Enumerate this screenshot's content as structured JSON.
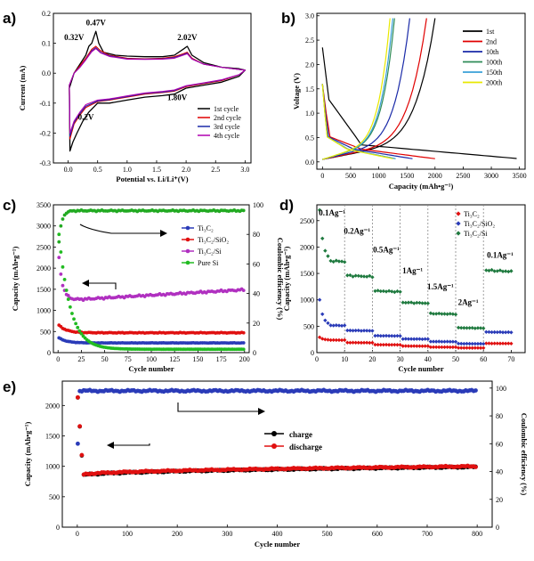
{
  "chart_data": [
    {
      "id": "a",
      "panel_label": "a)",
      "type": "line",
      "xlabel": "Potential vs. Li/Li⁺(V)",
      "ylabel": "Current (mA)",
      "xlim": [
        -0.25,
        3.1
      ],
      "ylim": [
        -0.3,
        0.2
      ],
      "xticks": [
        0.0,
        0.5,
        1.0,
        1.5,
        2.0,
        2.5,
        3.0
      ],
      "yticks": [
        -0.3,
        -0.2,
        -0.1,
        0.0,
        0.1,
        0.2
      ],
      "annotations": [
        {
          "text": "0.47V",
          "x": 0.47,
          "y": 0.16
        },
        {
          "text": "0.32V",
          "x": 0.1,
          "y": 0.11
        },
        {
          "text": "2.02V",
          "x": 2.02,
          "y": 0.11
        },
        {
          "text": "1.80V",
          "x": 1.85,
          "y": -0.09
        },
        {
          "text": "0.2V",
          "x": 0.3,
          "y": -0.155
        }
      ],
      "legend_position": "bottom-right",
      "series": [
        {
          "name": "1st cycle",
          "color": "#000000",
          "upper": [
            [
              0.02,
              -0.05
            ],
            [
              0.1,
              0.0
            ],
            [
              0.2,
              0.03
            ],
            [
              0.3,
              0.06
            ],
            [
              0.35,
              0.09
            ],
            [
              0.4,
              0.1
            ],
            [
              0.47,
              0.14
            ],
            [
              0.52,
              0.1
            ],
            [
              0.6,
              0.07
            ],
            [
              0.8,
              0.06
            ],
            [
              1.0,
              0.057
            ],
            [
              1.3,
              0.055
            ],
            [
              1.6,
              0.055
            ],
            [
              1.8,
              0.06
            ],
            [
              1.95,
              0.08
            ],
            [
              2.02,
              0.09
            ],
            [
              2.1,
              0.06
            ],
            [
              2.3,
              0.035
            ],
            [
              2.6,
              0.02
            ],
            [
              2.9,
              0.015
            ],
            [
              3.0,
              0.01
            ]
          ],
          "lower": [
            [
              3.0,
              0.01
            ],
            [
              2.9,
              -0.01
            ],
            [
              2.6,
              -0.03
            ],
            [
              2.3,
              -0.04
            ],
            [
              2.0,
              -0.05
            ],
            [
              1.8,
              -0.07
            ],
            [
              1.6,
              -0.075
            ],
            [
              1.3,
              -0.08
            ],
            [
              1.0,
              -0.09
            ],
            [
              0.7,
              -0.1
            ],
            [
              0.5,
              -0.1
            ],
            [
              0.35,
              -0.13
            ],
            [
              0.25,
              -0.16
            ],
            [
              0.15,
              -0.2
            ],
            [
              0.08,
              -0.23
            ],
            [
              0.03,
              -0.26
            ],
            [
              0.02,
              -0.05
            ]
          ]
        },
        {
          "name": "2nd cycle",
          "color": "#e00000",
          "upper": [
            [
              0.02,
              -0.04
            ],
            [
              0.1,
              0.0
            ],
            [
              0.2,
              0.025
            ],
            [
              0.3,
              0.05
            ],
            [
              0.4,
              0.08
            ],
            [
              0.47,
              0.09
            ],
            [
              0.55,
              0.075
            ],
            [
              0.7,
              0.06
            ],
            [
              1.0,
              0.05
            ],
            [
              1.3,
              0.048
            ],
            [
              1.6,
              0.05
            ],
            [
              1.8,
              0.055
            ],
            [
              1.95,
              0.065
            ],
            [
              2.02,
              0.07
            ],
            [
              2.1,
              0.05
            ],
            [
              2.3,
              0.03
            ],
            [
              2.6,
              0.02
            ],
            [
              3.0,
              0.01
            ]
          ],
          "lower": [
            [
              3.0,
              0.01
            ],
            [
              2.9,
              -0.005
            ],
            [
              2.6,
              -0.025
            ],
            [
              2.3,
              -0.035
            ],
            [
              2.0,
              -0.045
            ],
            [
              1.8,
              -0.06
            ],
            [
              1.6,
              -0.065
            ],
            [
              1.3,
              -0.07
            ],
            [
              1.0,
              -0.08
            ],
            [
              0.7,
              -0.09
            ],
            [
              0.5,
              -0.095
            ],
            [
              0.3,
              -0.115
            ],
            [
              0.2,
              -0.14
            ],
            [
              0.1,
              -0.17
            ],
            [
              0.03,
              -0.22
            ],
            [
              0.02,
              -0.04
            ]
          ]
        },
        {
          "name": "3rd cycle",
          "color": "#1a2aa8",
          "upper": [
            [
              0.02,
              -0.04
            ],
            [
              0.1,
              0.0
            ],
            [
              0.2,
              0.02
            ],
            [
              0.3,
              0.045
            ],
            [
              0.4,
              0.075
            ],
            [
              0.47,
              0.085
            ],
            [
              0.55,
              0.07
            ],
            [
              0.7,
              0.058
            ],
            [
              1.0,
              0.048
            ],
            [
              1.3,
              0.047
            ],
            [
              1.6,
              0.048
            ],
            [
              1.8,
              0.052
            ],
            [
              1.95,
              0.062
            ],
            [
              2.02,
              0.067
            ],
            [
              2.1,
              0.048
            ],
            [
              2.3,
              0.03
            ],
            [
              2.6,
              0.02
            ],
            [
              3.0,
              0.01
            ]
          ],
          "lower": [
            [
              3.0,
              0.01
            ],
            [
              2.9,
              -0.005
            ],
            [
              2.6,
              -0.023
            ],
            [
              2.3,
              -0.033
            ],
            [
              2.0,
              -0.043
            ],
            [
              1.8,
              -0.058
            ],
            [
              1.6,
              -0.063
            ],
            [
              1.3,
              -0.068
            ],
            [
              1.0,
              -0.078
            ],
            [
              0.7,
              -0.088
            ],
            [
              0.5,
              -0.093
            ],
            [
              0.3,
              -0.11
            ],
            [
              0.2,
              -0.135
            ],
            [
              0.1,
              -0.165
            ],
            [
              0.03,
              -0.21
            ],
            [
              0.02,
              -0.04
            ]
          ]
        },
        {
          "name": "4th cycle",
          "color": "#b000b0",
          "upper": [
            [
              0.02,
              -0.04
            ],
            [
              0.1,
              0.0
            ],
            [
              0.2,
              0.02
            ],
            [
              0.3,
              0.045
            ],
            [
              0.4,
              0.072
            ],
            [
              0.47,
              0.082
            ],
            [
              0.55,
              0.068
            ],
            [
              0.7,
              0.056
            ],
            [
              1.0,
              0.047
            ],
            [
              1.3,
              0.046
            ],
            [
              1.6,
              0.047
            ],
            [
              1.8,
              0.05
            ],
            [
              1.95,
              0.06
            ],
            [
              2.02,
              0.065
            ],
            [
              2.1,
              0.047
            ],
            [
              2.3,
              0.03
            ],
            [
              2.6,
              0.02
            ],
            [
              3.0,
              0.01
            ]
          ],
          "lower": [
            [
              3.0,
              0.01
            ],
            [
              2.9,
              -0.005
            ],
            [
              2.6,
              -0.022
            ],
            [
              2.3,
              -0.032
            ],
            [
              2.0,
              -0.042
            ],
            [
              1.8,
              -0.056
            ],
            [
              1.6,
              -0.061
            ],
            [
              1.3,
              -0.066
            ],
            [
              1.0,
              -0.076
            ],
            [
              0.7,
              -0.086
            ],
            [
              0.5,
              -0.09
            ],
            [
              0.3,
              -0.105
            ],
            [
              0.2,
              -0.13
            ],
            [
              0.1,
              -0.16
            ],
            [
              0.03,
              -0.2
            ],
            [
              0.02,
              -0.04
            ]
          ]
        }
      ]
    },
    {
      "id": "b",
      "panel_label": "b)",
      "type": "line",
      "xlabel": "Capacity (mAh•g⁻¹)",
      "ylabel": "Voltage (V)",
      "xlim": [
        -100,
        3600
      ],
      "ylim": [
        -0.15,
        3.05
      ],
      "xticks": [
        0,
        500,
        1000,
        1500,
        2000,
        2500,
        3000,
        3500
      ],
      "yticks": [
        0.0,
        0.5,
        1.0,
        1.5,
        2.0,
        2.5,
        3.0
      ],
      "legend_position": "top-right",
      "series": [
        {
          "name": "1st",
          "color": "#000000",
          "discharge_end": 3450,
          "charge_end": 2000
        },
        {
          "name": "2nd",
          "color": "#e00000",
          "discharge_end": 2000,
          "charge_end": 1850
        },
        {
          "name": "10th",
          "color": "#1a2aa8",
          "discharge_end": 1600,
          "charge_end": 1550
        },
        {
          "name": "100th",
          "color": "#2e8b57",
          "discharge_end": 1300,
          "charge_end": 1280
        },
        {
          "name": "150th",
          "color": "#3aa0d8",
          "discharge_end": 1300,
          "charge_end": 1250
        },
        {
          "name": "200th",
          "color": "#e8e800",
          "discharge_end": 1250,
          "charge_end": 1200
        }
      ]
    },
    {
      "id": "c",
      "panel_label": "c)",
      "type": "scatter",
      "xlabel": "Cycle number",
      "ylabel": "Capacity (mAh•g⁻¹)",
      "y2label": "Coulombic efficiency (%)",
      "xlim": [
        -5,
        205
      ],
      "ylim": [
        0,
        3500
      ],
      "y2lim": [
        0,
        100
      ],
      "xticks": [
        0,
        25,
        50,
        75,
        100,
        125,
        150,
        175,
        200
      ],
      "yticks": [
        0,
        500,
        1000,
        1500,
        2000,
        2500,
        3000,
        3500
      ],
      "y2ticks": [
        0,
        20,
        40,
        60,
        80,
        100
      ],
      "legend_position": "right",
      "series": [
        {
          "name": "Ti₃C₂",
          "color": "#2a3bb8",
          "first": 350,
          "plateau": 230,
          "tau": 8,
          "growth": 0
        },
        {
          "name": "Ti₃C₂/SiO₂",
          "color": "#e01010",
          "first": 650,
          "plateau": 470,
          "tau": 8,
          "growth": 0
        },
        {
          "name": "Ti₃C₂/Si",
          "color": "#b030c0",
          "first": 2250,
          "plateau": 1230,
          "tau": 4,
          "growth": 260
        },
        {
          "name": "Pure Si",
          "color": "#22bb22",
          "first": 2800,
          "plateau": 80,
          "tau": 12,
          "growth": 0
        }
      ],
      "efficiency": {
        "color": "#22aa22",
        "first": 75,
        "plateau": 96
      }
    },
    {
      "id": "d",
      "panel_label": "d)",
      "type": "scatter",
      "xlabel": "Cycle number",
      "ylabel": "Capacity (mAh•g⁻¹)",
      "xlim": [
        0,
        75
      ],
      "ylim": [
        0,
        2800
      ],
      "xticks": [
        0,
        10,
        20,
        30,
        40,
        50,
        60,
        70
      ],
      "yticks": [
        0,
        500,
        1000,
        1500,
        2000,
        2500
      ],
      "legend_position": "top-right",
      "rate_labels": [
        {
          "text": "0.1Ag⁻¹",
          "x": 5.5,
          "y": 2600
        },
        {
          "text": "0.2Ag⁻¹",
          "x": 14.5,
          "y": 2250
        },
        {
          "text": "0.5Ag⁻¹",
          "x": 25,
          "y": 1900
        },
        {
          "text": "1Ag⁻¹",
          "x": 34.5,
          "y": 1500
        },
        {
          "text": "1.5Ag⁻¹",
          "x": 44.5,
          "y": 1200
        },
        {
          "text": "2Ag⁻¹",
          "x": 54.5,
          "y": 900
        },
        {
          "text": "0.1Ag⁻¹",
          "x": 66,
          "y": 1800
        }
      ],
      "segment_bounds": [
        10,
        20,
        30,
        40,
        50,
        60
      ],
      "series": [
        {
          "name": "Ti₃C₂",
          "color": "#e01010",
          "first": 290,
          "levels": [
            240,
            190,
            150,
            125,
            105,
            90,
            175
          ]
        },
        {
          "name": "Ti₃C₂/SiO₂",
          "color": "#2a3bb8",
          "first": 1000,
          "levels": [
            520,
            420,
            320,
            260,
            210,
            170,
            390
          ]
        },
        {
          "name": "Ti₃C₂/Si",
          "color": "#1f7a3f",
          "first": 2700,
          "levels": [
            1750,
            1460,
            1170,
            950,
            740,
            470,
            1560
          ]
        }
      ]
    },
    {
      "id": "e",
      "panel_label": "e)",
      "type": "scatter",
      "xlabel": "Cycle number",
      "ylabel": "Capacity (mAh•g⁻¹)",
      "y2label": "Coulombic efficiency (%)",
      "xlim": [
        -30,
        830
      ],
      "ylim": [
        0,
        2400
      ],
      "y2lim": [
        0,
        105
      ],
      "xticks": [
        0,
        100,
        200,
        300,
        400,
        500,
        600,
        700,
        800
      ],
      "yticks": [
        0,
        500,
        1000,
        1500,
        2000
      ],
      "y2ticks": [
        0,
        20,
        40,
        60,
        80,
        100
      ],
      "legend_position": "center",
      "series": [
        {
          "name": "charge",
          "color": "#000000",
          "first": 2250,
          "dip": 820,
          "plateau_start": 850,
          "plateau_end": 990
        },
        {
          "name": "discharge",
          "color": "#e01010",
          "first": 2250,
          "dip": 830,
          "plateau_start": 860,
          "plateau_end": 1000
        }
      ],
      "efficiency": {
        "color": "#2a3bb8",
        "first": 60,
        "plateau": 98
      }
    }
  ]
}
